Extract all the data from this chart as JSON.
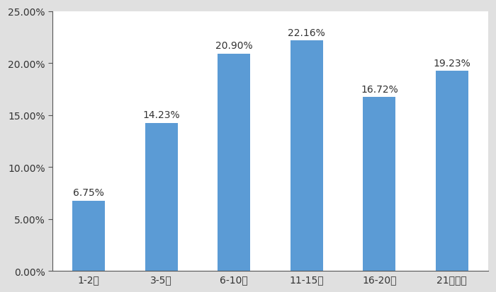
{
  "categories": [
    "1-2年",
    "3-5年",
    "6-10年",
    "11-15年",
    "16-20年",
    "21年以上"
  ],
  "values": [
    6.75,
    14.23,
    20.9,
    22.16,
    16.72,
    19.23
  ],
  "labels": [
    "6.75%",
    "14.23%",
    "20.90%",
    "22.16%",
    "16.72%",
    "19.23%"
  ],
  "bar_color": "#5B9BD5",
  "ylim": [
    0,
    25
  ],
  "yticks": [
    0,
    5,
    10,
    15,
    20,
    25
  ],
  "ytick_labels": [
    "0.00%",
    "5.00%",
    "10.00%",
    "15.00%",
    "20.00%",
    "25.00%"
  ],
  "background_color": "#ffffff",
  "outer_background": "#e0e0e0",
  "label_fontsize": 10,
  "tick_fontsize": 10,
  "bar_width": 0.45
}
